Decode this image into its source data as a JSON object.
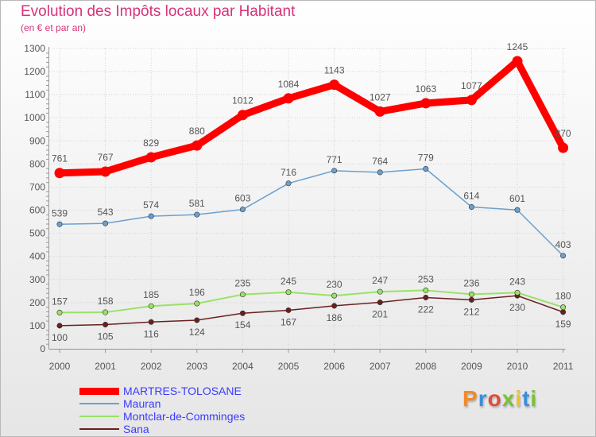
{
  "header": {
    "title": "Evolution des Impôts locaux par Habitant",
    "subtitle": "(en € et par an)"
  },
  "logo": {
    "text": "Proxiti",
    "letters": [
      "P",
      "r",
      "o",
      "x",
      "i",
      "t",
      "i"
    ]
  },
  "colors": {
    "martres": "#ff0000",
    "mauran": "#6aa0d0",
    "montclar": "#99e266",
    "sana": "#6b1f1f",
    "text": "#555555",
    "grid": "#d2d2d2"
  },
  "chart_data": {
    "type": "line",
    "title": "Evolution des Impôts locaux par Habitant",
    "subtitle": "(en € et par an)",
    "xlabel": "",
    "ylabel": "",
    "x": [
      "2000",
      "2001",
      "2002",
      "2003",
      "2004",
      "2005",
      "2006",
      "2007",
      "2008",
      "2009",
      "2010",
      "2011"
    ],
    "ylim": [
      0,
      1300
    ],
    "yticks": [
      0,
      100,
      200,
      300,
      400,
      500,
      600,
      700,
      800,
      900,
      1000,
      1100,
      1200,
      1300
    ],
    "grid": true,
    "legend_position": "bottom-left",
    "series": [
      {
        "name": "MARTRES-TOLOSANE",
        "values": [
          761,
          767,
          829,
          880,
          1012,
          1084,
          1143,
          1027,
          1063,
          1077,
          1245,
          870
        ],
        "labels": [
          "761",
          "767",
          "829",
          "880",
          "1012",
          "1084",
          "1143",
          "1027",
          "1063",
          "1077",
          "1245",
          "870"
        ]
      },
      {
        "name": "Mauran",
        "values": [
          539,
          543,
          574,
          581,
          603,
          716,
          771,
          764,
          779,
          614,
          601,
          403
        ],
        "labels": [
          "539",
          "543",
          "574",
          "581",
          "603",
          "716",
          "771",
          "764",
          "779",
          "614",
          "601",
          "403"
        ]
      },
      {
        "name": "Montclar-de-Comminges",
        "values": [
          157,
          158,
          185,
          196,
          235,
          245,
          230,
          247,
          253,
          236,
          243,
          180
        ],
        "labels": [
          "157",
          "158",
          "185",
          "196",
          "235",
          "245",
          "230",
          "247",
          "253",
          "236",
          "243",
          "180"
        ]
      },
      {
        "name": "Sana",
        "values": [
          100,
          105,
          116,
          124,
          154,
          167,
          186,
          201,
          222,
          212,
          230,
          159
        ],
        "labels": [
          "100",
          "105",
          "116",
          "124",
          "154",
          "167",
          "186",
          "201",
          "222",
          "212",
          "230",
          "159"
        ]
      }
    ]
  }
}
